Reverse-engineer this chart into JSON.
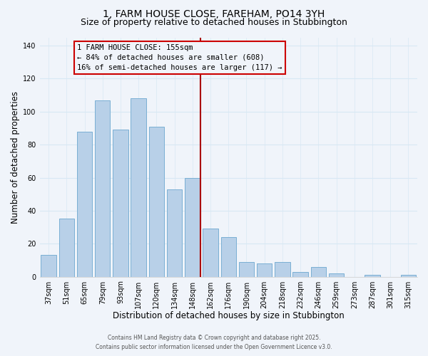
{
  "title_line1": "1, FARM HOUSE CLOSE, FAREHAM, PO14 3YH",
  "title_line2": "Size of property relative to detached houses in Stubbington",
  "xlabel": "Distribution of detached houses by size in Stubbington",
  "ylabel": "Number of detached properties",
  "bar_labels": [
    "37sqm",
    "51sqm",
    "65sqm",
    "79sqm",
    "93sqm",
    "107sqm",
    "120sqm",
    "134sqm",
    "148sqm",
    "162sqm",
    "176sqm",
    "190sqm",
    "204sqm",
    "218sqm",
    "232sqm",
    "246sqm",
    "259sqm",
    "273sqm",
    "287sqm",
    "301sqm",
    "315sqm"
  ],
  "bar_values": [
    13,
    35,
    88,
    107,
    89,
    108,
    91,
    53,
    60,
    29,
    24,
    9,
    8,
    9,
    3,
    6,
    2,
    0,
    1,
    0,
    1
  ],
  "bar_color": "#b8d0e8",
  "bar_edge_color": "#7aafd4",
  "grid_color": "#d8e8f4",
  "vline_color": "#aa0000",
  "annotation_title": "1 FARM HOUSE CLOSE: 155sqm",
  "annotation_line1": "← 84% of detached houses are smaller (608)",
  "annotation_line2": "16% of semi-detached houses are larger (117) →",
  "annotation_box_color": "#cc0000",
  "ylim": [
    0,
    145
  ],
  "yticks": [
    0,
    20,
    40,
    60,
    80,
    100,
    120,
    140
  ],
  "footnote1": "Contains HM Land Registry data © Crown copyright and database right 2025.",
  "footnote2": "Contains public sector information licensed under the Open Government Licence v3.0.",
  "background_color": "#f0f4fa",
  "title_fontsize": 10,
  "subtitle_fontsize": 9,
  "tick_fontsize": 7,
  "axis_label_fontsize": 8.5,
  "annotation_fontsize": 7.5,
  "footnote_fontsize": 5.5
}
